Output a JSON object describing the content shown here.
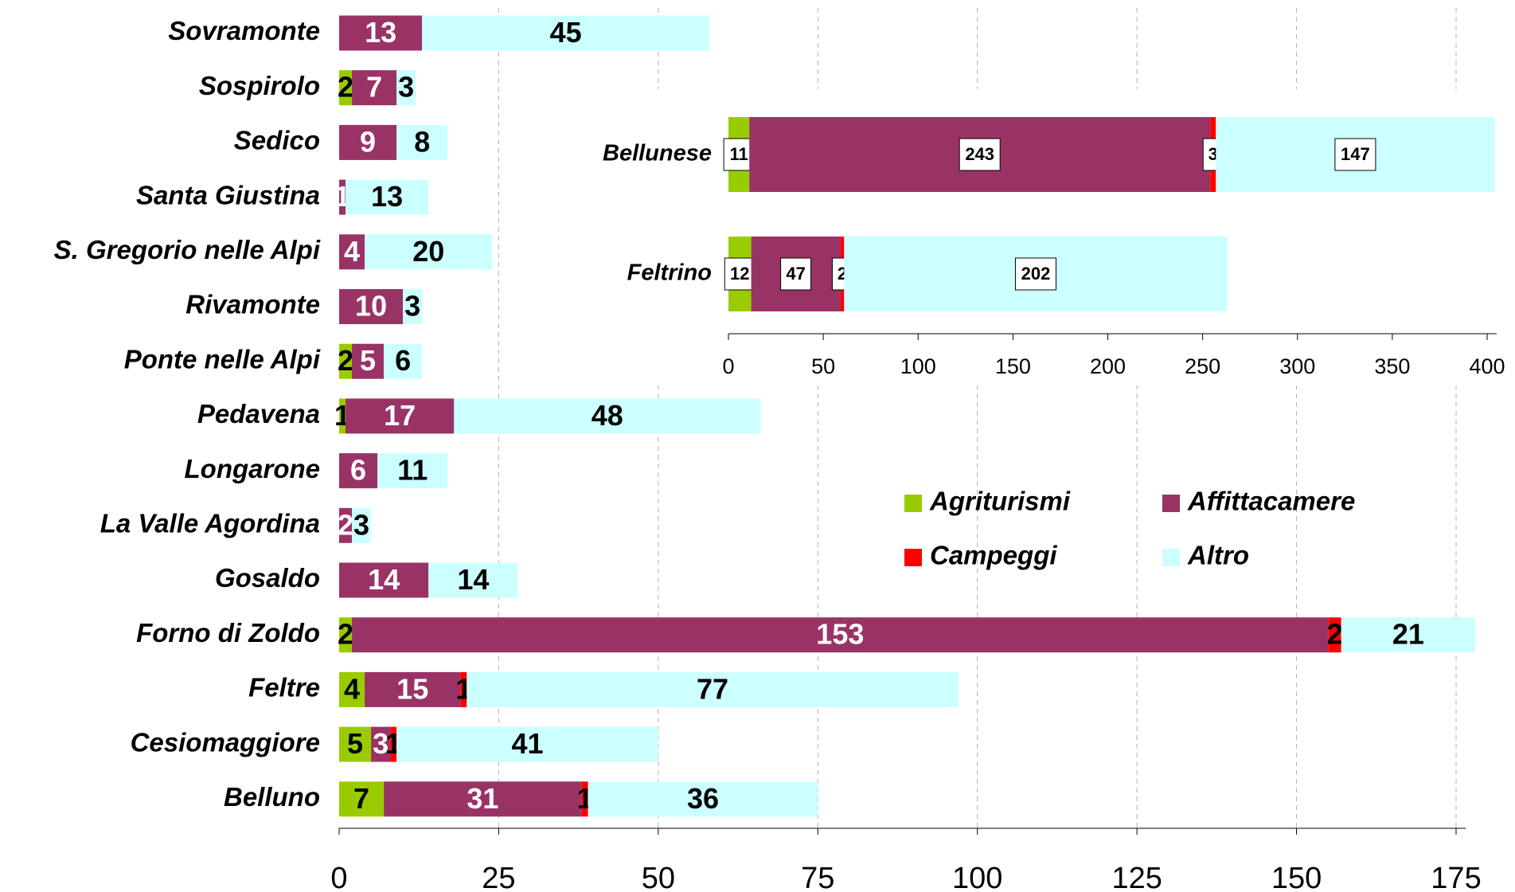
{
  "chart_data": [
    {
      "type": "bar",
      "orientation": "horizontal",
      "stacked": true,
      "categories": [
        "Sovramonte",
        "Sospirolo",
        "Sedico",
        "Santa Giustina",
        "S. Gregorio nelle Alpi",
        "Rivamonte",
        "Ponte nelle Alpi",
        "Pedavena",
        "Longarone",
        "La Valle Agordina",
        "Gosaldo",
        "Forno di Zoldo",
        "Feltre",
        "Cesiomaggiore",
        "Belluno"
      ],
      "series": [
        {
          "name": "Agriturismi",
          "color": "#99cc00",
          "values": [
            0,
            2,
            0,
            0,
            0,
            0,
            2,
            1,
            0,
            0,
            0,
            2,
            4,
            5,
            7
          ]
        },
        {
          "name": "Affittacamere",
          "color": "#993366",
          "values": [
            13,
            7,
            9,
            1,
            4,
            10,
            5,
            17,
            6,
            2,
            14,
            153,
            15,
            3,
            31
          ]
        },
        {
          "name": "Campeggi",
          "color": "#ff0000",
          "values": [
            0,
            0,
            0,
            0,
            0,
            0,
            0,
            0,
            0,
            0,
            0,
            2,
            1,
            1,
            1
          ]
        },
        {
          "name": "Altro",
          "color": "#ccffff",
          "values": [
            45,
            3,
            8,
            13,
            20,
            3,
            6,
            48,
            11,
            3,
            14,
            21,
            77,
            41,
            36
          ]
        }
      ],
      "xlim": [
        0,
        175
      ],
      "xticks": [
        0,
        25,
        50,
        75,
        100,
        125,
        150,
        175
      ],
      "grid": true,
      "legend": "center-right"
    },
    {
      "type": "bar",
      "orientation": "horizontal",
      "stacked": true,
      "categories": [
        "Bellunese",
        "Feltrino"
      ],
      "series": [
        {
          "color": "#99cc00",
          "values": [
            11,
            12
          ]
        },
        {
          "color": "#993366",
          "values": [
            243,
            47
          ]
        },
        {
          "color": "#ff0000",
          "values": [
            3,
            2
          ]
        },
        {
          "color": "#ccffff",
          "values": [
            147,
            202
          ]
        }
      ],
      "xlim": [
        0,
        400
      ],
      "xticks": [
        0,
        50,
        100,
        150,
        200,
        250,
        300,
        350,
        400
      ],
      "grid": false
    }
  ]
}
